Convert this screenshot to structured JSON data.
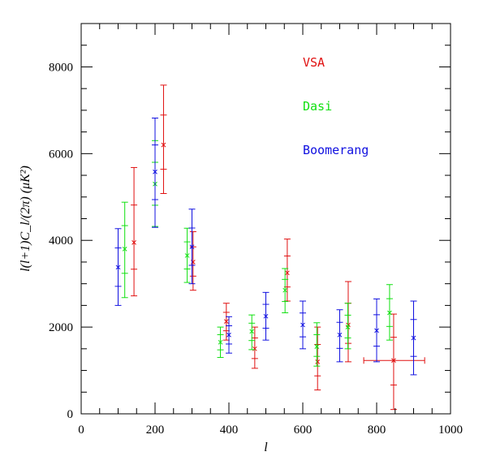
{
  "chart_data": {
    "type": "scatter",
    "title": "",
    "xlabel": "l",
    "ylabel": "l(l+1)C_l/(2π)  (μK²)",
    "xlim": [
      0,
      1000
    ],
    "ylim": [
      0,
      9000
    ],
    "x_ticks": [
      0,
      200,
      400,
      600,
      800,
      1000
    ],
    "y_ticks": [
      0,
      2000,
      4000,
      6000,
      8000
    ],
    "x_minor_step": 50,
    "y_minor_step": 500,
    "grid": false,
    "legend_placement": "top-right",
    "series": [
      {
        "name": "VSA",
        "color": "#e01010",
        "points": [
          {
            "x": 143,
            "y": 3950,
            "err_low": 2720,
            "err_high": 5680
          },
          {
            "x": 223,
            "y": 6200,
            "err_low": 5080,
            "err_high": 7580
          },
          {
            "x": 303,
            "y": 3500,
            "err_low": 2850,
            "err_high": 4200
          },
          {
            "x": 393,
            "y": 2130,
            "err_low": 1700,
            "err_high": 2550
          },
          {
            "x": 470,
            "y": 1500,
            "err_low": 1050,
            "err_high": 2000
          },
          {
            "x": 558,
            "y": 3250,
            "err_low": 2600,
            "err_high": 4030
          },
          {
            "x": 640,
            "y": 1200,
            "err_low": 550,
            "err_high": 2000
          },
          {
            "x": 723,
            "y": 2050,
            "err_low": 1200,
            "err_high": 3050
          },
          {
            "x": 846,
            "y": 1230,
            "err_low": 100,
            "err_high": 2300,
            "x_low": 765,
            "x_high": 930
          }
        ]
      },
      {
        "name": "Dasi",
        "color": "#10e010",
        "points": [
          {
            "x": 118,
            "y": 3800,
            "err_low": 2680,
            "err_high": 4880
          },
          {
            "x": 200,
            "y": 5300,
            "err_low": 4320,
            "err_high": 6300
          },
          {
            "x": 287,
            "y": 3650,
            "err_low": 3030,
            "err_high": 4280
          },
          {
            "x": 377,
            "y": 1650,
            "err_low": 1300,
            "err_high": 2000
          },
          {
            "x": 462,
            "y": 1900,
            "err_low": 1480,
            "err_high": 2280
          },
          {
            "x": 552,
            "y": 2850,
            "err_low": 2330,
            "err_high": 3350
          },
          {
            "x": 638,
            "y": 1550,
            "err_low": 1100,
            "err_high": 2100
          },
          {
            "x": 722,
            "y": 2000,
            "err_low": 1500,
            "err_high": 2550
          },
          {
            "x": 835,
            "y": 2330,
            "err_low": 1700,
            "err_high": 2980
          }
        ]
      },
      {
        "name": "Boomerang",
        "color": "#1010e0",
        "points": [
          {
            "x": 100,
            "y": 3380,
            "err_low": 2500,
            "err_high": 4270
          },
          {
            "x": 200,
            "y": 5580,
            "err_low": 4300,
            "err_high": 6820
          },
          {
            "x": 300,
            "y": 3850,
            "err_low": 3000,
            "err_high": 4720
          },
          {
            "x": 400,
            "y": 1820,
            "err_low": 1400,
            "err_high": 2240
          },
          {
            "x": 500,
            "y": 2250,
            "err_low": 1700,
            "err_high": 2800
          },
          {
            "x": 600,
            "y": 2050,
            "err_low": 1500,
            "err_high": 2600
          },
          {
            "x": 700,
            "y": 1820,
            "err_low": 1200,
            "err_high": 2400
          },
          {
            "x": 800,
            "y": 1920,
            "err_low": 1200,
            "err_high": 2650
          },
          {
            "x": 900,
            "y": 1750,
            "err_low": 900,
            "err_high": 2600
          }
        ]
      }
    ]
  }
}
